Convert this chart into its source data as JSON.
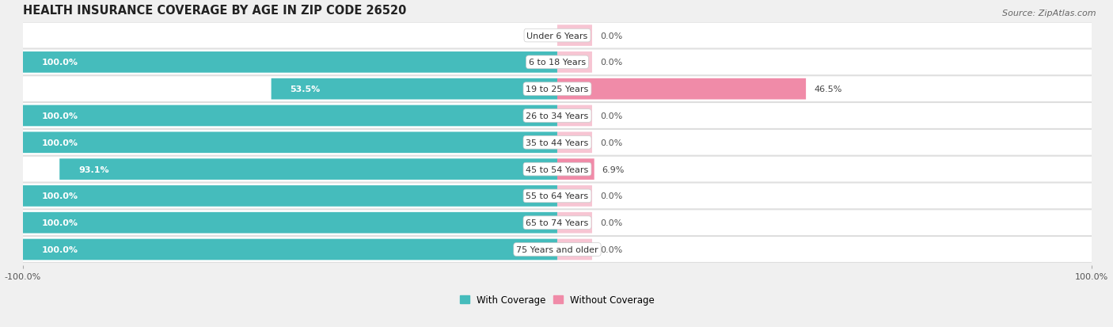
{
  "title": "HEALTH INSURANCE COVERAGE BY AGE IN ZIP CODE 26520",
  "source": "Source: ZipAtlas.com",
  "categories": [
    "Under 6 Years",
    "6 to 18 Years",
    "19 to 25 Years",
    "26 to 34 Years",
    "35 to 44 Years",
    "45 to 54 Years",
    "55 to 64 Years",
    "65 to 74 Years",
    "75 Years and older"
  ],
  "with_coverage": [
    0.0,
    100.0,
    53.5,
    100.0,
    100.0,
    93.1,
    100.0,
    100.0,
    100.0
  ],
  "without_coverage": [
    0.0,
    0.0,
    46.5,
    0.0,
    0.0,
    6.9,
    0.0,
    0.0,
    0.0
  ],
  "color_with": "#45BCBC",
  "color_without": "#F08BA8",
  "color_without_faint": "#F7C5D3",
  "bg_color": "#f0f0f0",
  "row_bg_color": "#ffffff",
  "title_fontsize": 10.5,
  "label_fontsize": 8.0,
  "tick_fontsize": 8.0,
  "legend_fontsize": 8.5,
  "source_fontsize": 8.0,
  "xlim_left": -100,
  "xlim_right": 100
}
